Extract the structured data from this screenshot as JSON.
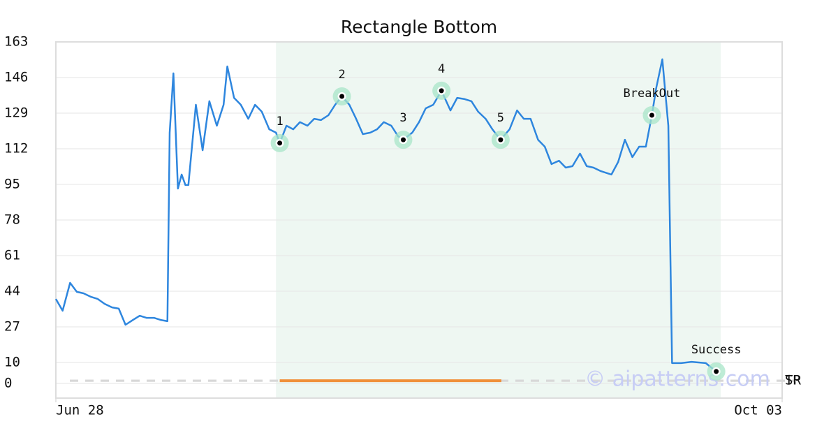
{
  "chart_data": {
    "type": "line",
    "title": "Rectangle Bottom",
    "xlim": [
      0,
      97
    ],
    "xticks": [
      {
        "value": 0,
        "label": "Jun 28"
      },
      {
        "value": 97,
        "label": "Oct 03"
      }
    ],
    "ylim": [
      -7,
      163
    ],
    "yticks": [
      0,
      10,
      27,
      44,
      61,
      78,
      95,
      112,
      129,
      146,
      163
    ],
    "grid": true,
    "highlight_range": [
      29.4,
      88.8
    ],
    "highlight_color": "#eef7f2",
    "series": [
      {
        "color": "#2e86de",
        "x": [
          0,
          0.9,
          1.9,
          2.8,
          3.7,
          4.7,
          5.6,
          6.5,
          7.5,
          8.4,
          9.3,
          10.3,
          11.2,
          12.1,
          13.1,
          14,
          14.9,
          15.2,
          15.7,
          16.3,
          16.8,
          17.3,
          17.7,
          18.7,
          19.6,
          20.5,
          21.5,
          22.4,
          22.9,
          23.8,
          24.7,
          25.7,
          26.6,
          27.5,
          28.5,
          29.4,
          29.9,
          30.8,
          31.7,
          32.6,
          33.6,
          34.5,
          35.4,
          36.4,
          37.3,
          38.2,
          39.2,
          40.1,
          41,
          42,
          42.9,
          43.8,
          44.8,
          45.7,
          46.4,
          47.6,
          48.5,
          49.4,
          50.4,
          51.5,
          52.7,
          53.6,
          54.6,
          55.5,
          56.4,
          57.4,
          58.3,
          59.4,
          60.6,
          61.6,
          62.5,
          63.4,
          64.4,
          65.3,
          66.2,
          67.2,
          68.1,
          69,
          70,
          70.9,
          71.8,
          72.8,
          74.2,
          75.1,
          76,
          77,
          77.9,
          78.8,
          79.6,
          80.2,
          81,
          81.8,
          82.3,
          83.5,
          84.9,
          86.8,
          88.2
        ],
        "values": [
          40.3,
          34.7,
          48,
          43.7,
          43,
          41.3,
          40.3,
          38,
          36.3,
          35.7,
          28,
          30.3,
          32.3,
          31.3,
          31.3,
          30.3,
          29.7,
          119.7,
          148,
          93,
          99.7,
          94.7,
          94.7,
          133,
          111.3,
          134.7,
          123,
          133,
          151.3,
          136.3,
          133,
          126.3,
          133,
          129.7,
          121.3,
          119.7,
          114.7,
          123,
          121.3,
          124.7,
          123,
          126.3,
          125.7,
          128,
          133,
          137,
          133,
          126.3,
          119,
          119.7,
          121.3,
          124.7,
          123,
          118,
          116.3,
          119.7,
          124.7,
          131.3,
          133,
          139.7,
          130.3,
          136.3,
          135.7,
          134.7,
          129.7,
          126.3,
          121.3,
          116.3,
          121.3,
          130.3,
          126.3,
          126.3,
          116.3,
          113,
          104.7,
          106.3,
          103,
          103.7,
          109.7,
          103.7,
          103,
          101.3,
          99.7,
          105.7,
          116.3,
          108,
          113,
          113,
          128,
          141.3,
          154.7,
          123,
          9.7,
          9.7,
          10.3,
          9.7,
          5.7
        ]
      }
    ],
    "points": [
      {
        "label": "1",
        "x": 29.9,
        "y": 114.7
      },
      {
        "label": "2",
        "x": 38.2,
        "y": 137
      },
      {
        "label": "3",
        "x": 46.4,
        "y": 116.3
      },
      {
        "label": "4",
        "x": 51.5,
        "y": 139.7
      },
      {
        "label": "5",
        "x": 59.4,
        "y": 116.3
      },
      {
        "label": "BreakOut",
        "x": 79.6,
        "y": 128
      },
      {
        "label": "Success",
        "x": 88.2,
        "y": 5.7
      }
    ],
    "levels": [
      {
        "label": "TP",
        "value": 1.3
      },
      {
        "label": "SR",
        "value": 1.3
      }
    ],
    "pattern_line": {
      "x": [
        29.9,
        59.5
      ],
      "values": [
        1.3,
        1.3
      ],
      "color": "#f0903a"
    },
    "watermark": "© aipatterns.com"
  }
}
